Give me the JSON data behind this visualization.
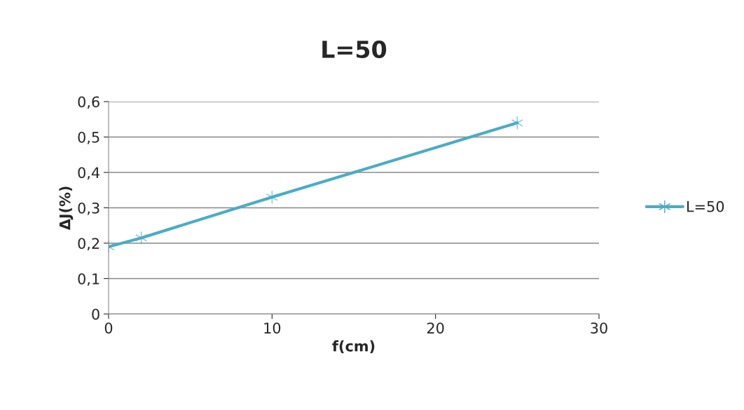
{
  "chart_data": {
    "type": "line",
    "title": "L=50",
    "xlabel": "f(cm)",
    "ylabel": "ΔJ(%)",
    "x": [
      0,
      2,
      10,
      25
    ],
    "series": [
      {
        "name": "L=50",
        "color": "#4bacc6",
        "values": [
          0.19,
          0.215,
          0.33,
          0.54
        ]
      }
    ],
    "xlim": [
      0,
      30
    ],
    "xticks": [
      0,
      10,
      20,
      30
    ],
    "ylim": [
      0,
      0.6
    ],
    "yticks": [
      0,
      {
        "value": 0.1,
        "label": "0,1"
      },
      {
        "value": 0.2,
        "label": "0,2"
      },
      {
        "value": 0.3,
        "label": "0,3"
      },
      {
        "value": 0.4,
        "label": "0,4"
      },
      {
        "value": 0.5,
        "label": "0,5"
      },
      {
        "value": 0.6,
        "label": "0,6"
      }
    ],
    "grid": "y",
    "legend": "right",
    "marker": "cross",
    "line_style": "solid"
  }
}
